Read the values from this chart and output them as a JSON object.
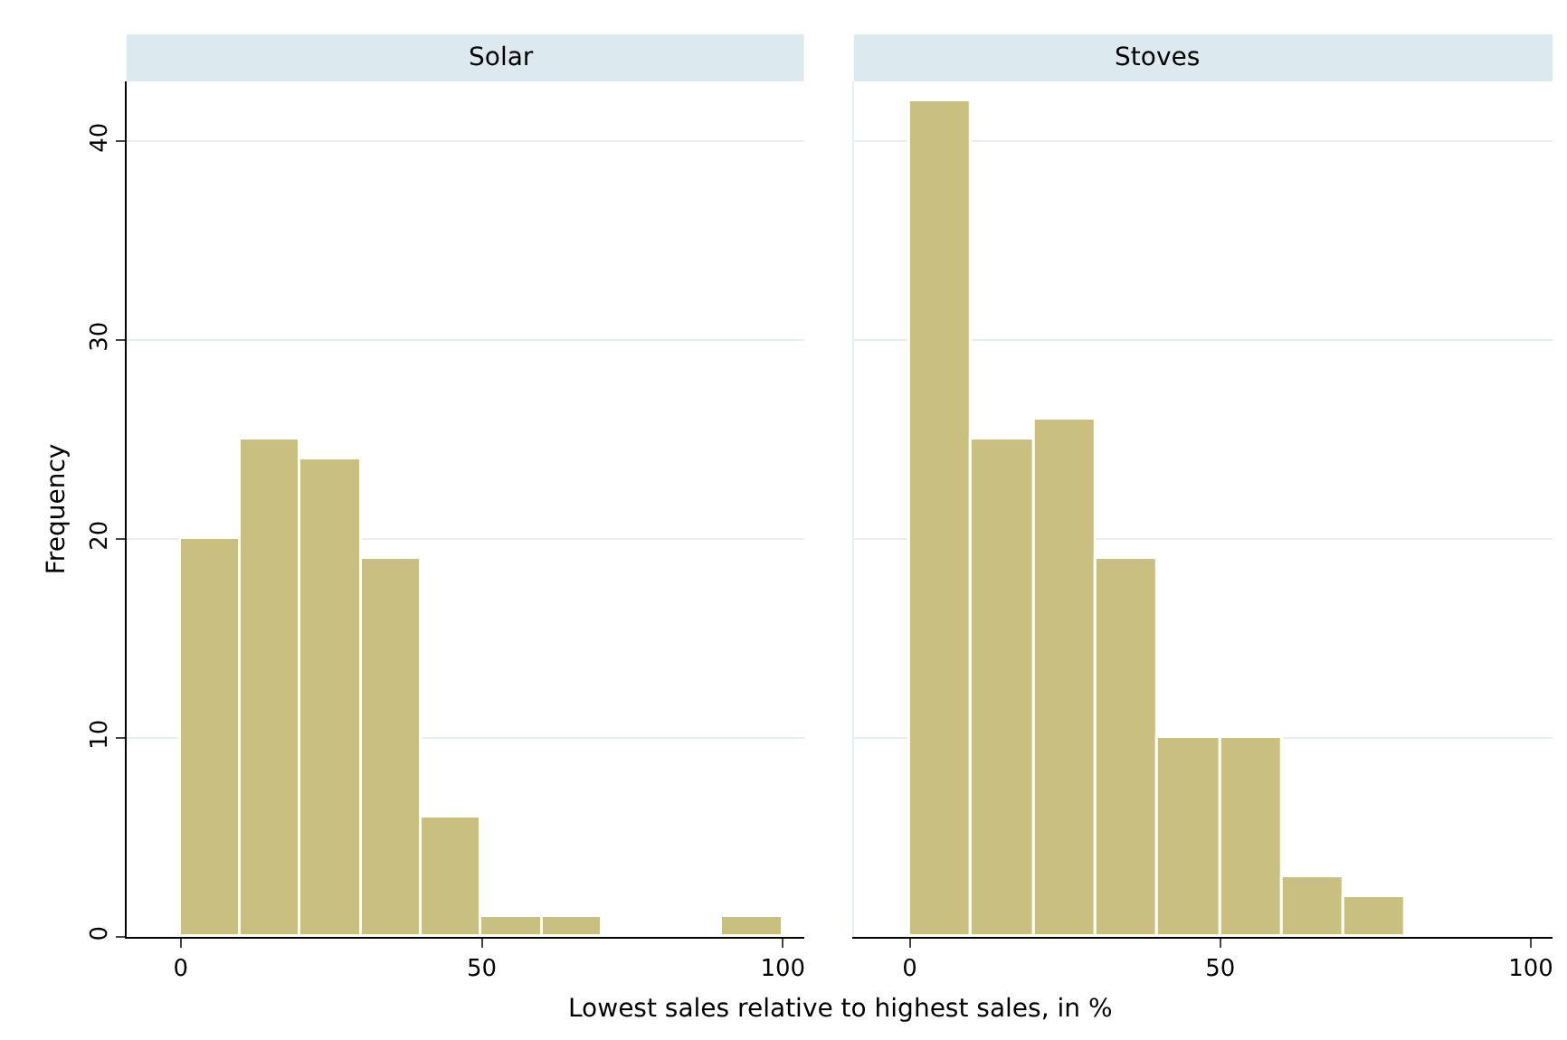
{
  "chart_data": [
    {
      "type": "histogram",
      "title": "Solar",
      "ylabel": "Frequency",
      "xlabel": "Lowest sales relative to highest sales, in %",
      "bins": [
        0,
        10,
        20,
        30,
        40,
        50,
        60,
        70,
        80,
        90,
        100
      ],
      "values": [
        20,
        25,
        24,
        19,
        6,
        1,
        1,
        0,
        0,
        1
      ],
      "color": "#c9bf80",
      "xlim": [
        -9,
        103.5
      ],
      "xticks": [
        0,
        50,
        100
      ],
      "ylim": [
        0,
        43
      ],
      "yticks": [
        0,
        10,
        20,
        30,
        40
      ],
      "grid": "y"
    },
    {
      "type": "histogram",
      "title": "Stoves",
      "bins": [
        0,
        10,
        20,
        30,
        40,
        50,
        60,
        70,
        80
      ],
      "values": [
        42,
        25,
        26,
        19,
        10,
        10,
        3,
        2
      ],
      "color": "#c9bf80",
      "xlim": [
        -9,
        103.5
      ],
      "xticks": [
        0,
        50,
        100
      ],
      "ylim": [
        0,
        43
      ],
      "yticks": [
        0,
        10,
        20,
        30,
        40
      ],
      "grid": "y",
      "tick_labels": "x"
    }
  ]
}
